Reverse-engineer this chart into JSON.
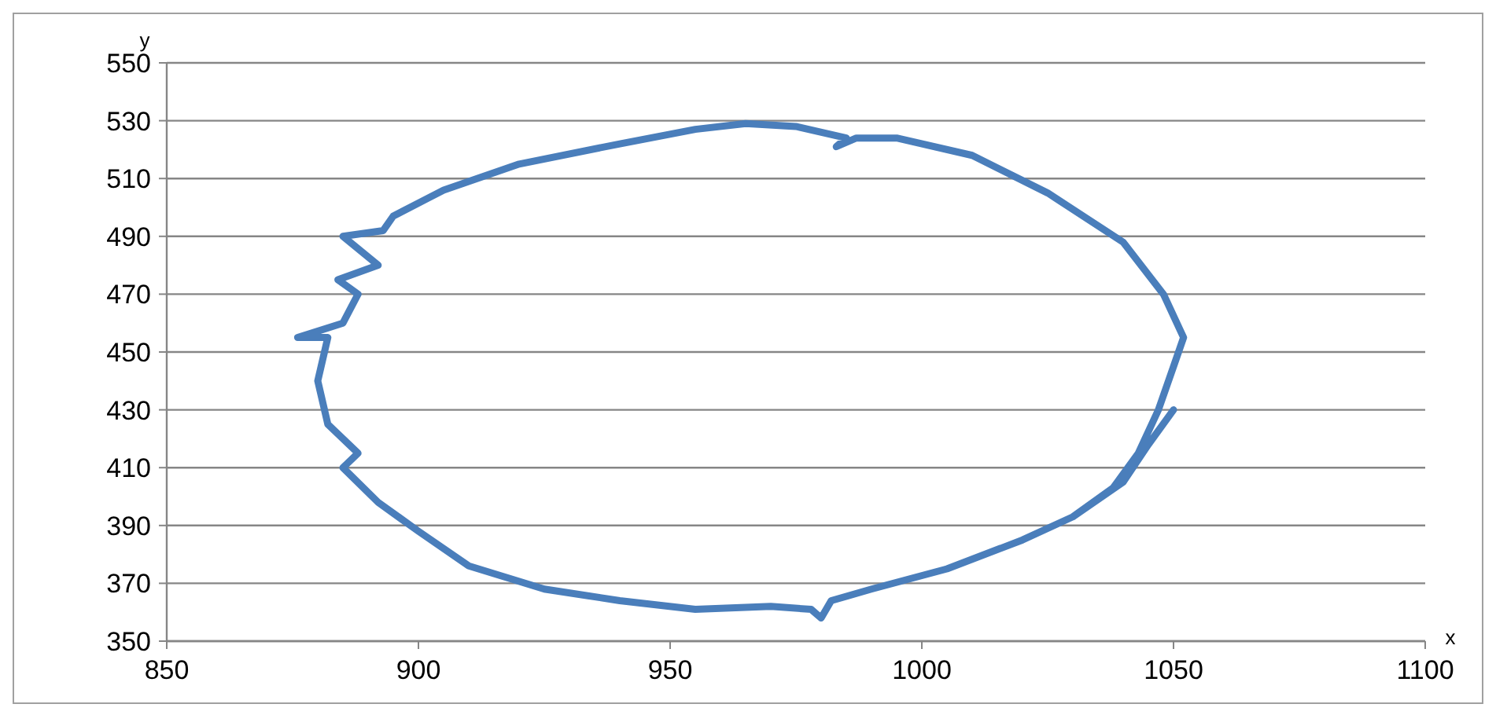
{
  "chart_data": {
    "type": "line",
    "xlabel": "x",
    "ylabel": "y",
    "xlim": [
      850,
      1100
    ],
    "ylim": [
      350,
      550
    ],
    "xticks": [
      850,
      900,
      950,
      1000,
      1050,
      1100
    ],
    "yticks": [
      350,
      370,
      390,
      410,
      430,
      450,
      470,
      490,
      510,
      530,
      550
    ],
    "grid": "y",
    "marker": "none",
    "line_style": "solid",
    "series": [
      {
        "color": "#4a7ebb",
        "x": [
          1050,
          1045,
          1040,
          1030,
          1020,
          1005,
          990,
          982,
          980,
          978,
          970,
          955,
          940,
          925,
          910,
          900,
          892,
          885,
          888,
          882,
          880,
          882,
          876,
          885,
          888,
          884,
          892,
          885,
          893,
          895,
          905,
          920,
          940,
          955,
          965,
          975,
          985,
          983,
          987,
          995,
          1010,
          1025,
          1040,
          1048,
          1052,
          1050,
          1047,
          1043,
          1038,
          1030,
          1020,
          1008
        ],
        "values": [
          430,
          418,
          405,
          393,
          385,
          375,
          368,
          364,
          358,
          361,
          362,
          361,
          364,
          368,
          376,
          388,
          398,
          410,
          415,
          425,
          440,
          455,
          455,
          460,
          470,
          475,
          480,
          490,
          492,
          497,
          506,
          515,
          522,
          527,
          529,
          528,
          524,
          521,
          524,
          524,
          518,
          505,
          488,
          470,
          455,
          445,
          430,
          415,
          403,
          393,
          385,
          377
        ]
      }
    ]
  }
}
